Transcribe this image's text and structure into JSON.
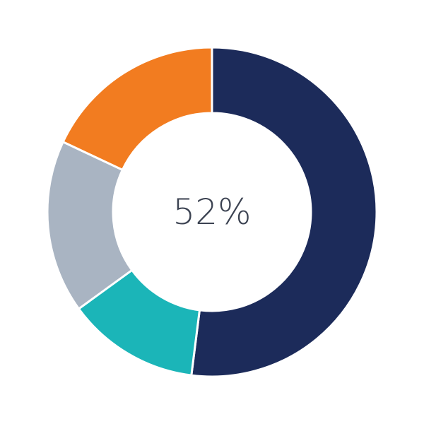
{
  "chart_data": {
    "type": "pie",
    "donut": true,
    "center_label": "52%",
    "start": "top",
    "direction": "clockwise",
    "slices": [
      {
        "value": 52,
        "color": "#1c2b5a"
      },
      {
        "value": 13,
        "color": "#1bb5b8"
      },
      {
        "value": 17,
        "color": "#a9b4c2"
      },
      {
        "value": 18,
        "color": "#f27c20"
      }
    ]
  }
}
